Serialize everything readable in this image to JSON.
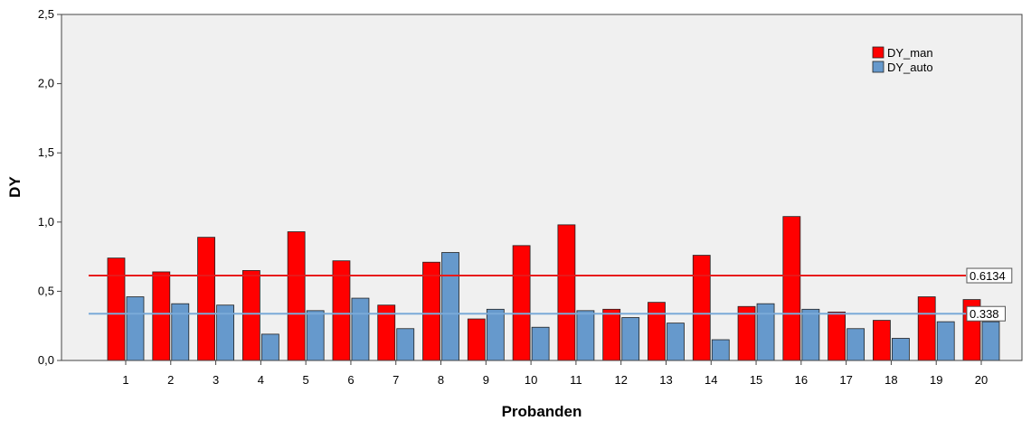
{
  "chart_data": {
    "type": "bar",
    "title": "",
    "xlabel": "Probanden",
    "ylabel": "DY",
    "ylim": [
      0,
      2.5
    ],
    "yticks": [
      "0,0",
      "0,5",
      "1,0",
      "1,5",
      "2,0",
      "2,5"
    ],
    "categories": [
      "1",
      "2",
      "3",
      "4",
      "5",
      "6",
      "7",
      "8",
      "9",
      "10",
      "11",
      "12",
      "13",
      "14",
      "15",
      "16",
      "17",
      "18",
      "19",
      "20"
    ],
    "series": [
      {
        "name": "DY_man",
        "color": "#ff0000",
        "values": [
          0.74,
          0.64,
          0.89,
          0.65,
          0.93,
          0.72,
          0.4,
          0.71,
          0.3,
          0.83,
          0.98,
          0.37,
          0.42,
          0.76,
          0.39,
          1.04,
          0.35,
          0.29,
          0.46,
          0.44
        ]
      },
      {
        "name": "DY_auto",
        "color": "#6699cc",
        "values": [
          0.46,
          0.41,
          0.4,
          0.19,
          0.36,
          0.45,
          0.23,
          0.78,
          0.37,
          0.24,
          0.36,
          0.31,
          0.27,
          0.15,
          0.41,
          0.37,
          0.23,
          0.16,
          0.28,
          0.28
        ]
      }
    ],
    "reference_lines": [
      {
        "value": 0.6134,
        "label": "0.6134",
        "color": "#e8191a"
      },
      {
        "value": 0.338,
        "label": "0.338",
        "color": "#7aaad8"
      }
    ],
    "legend": "top-right",
    "background": "#f0f0f0",
    "grid": false
  }
}
